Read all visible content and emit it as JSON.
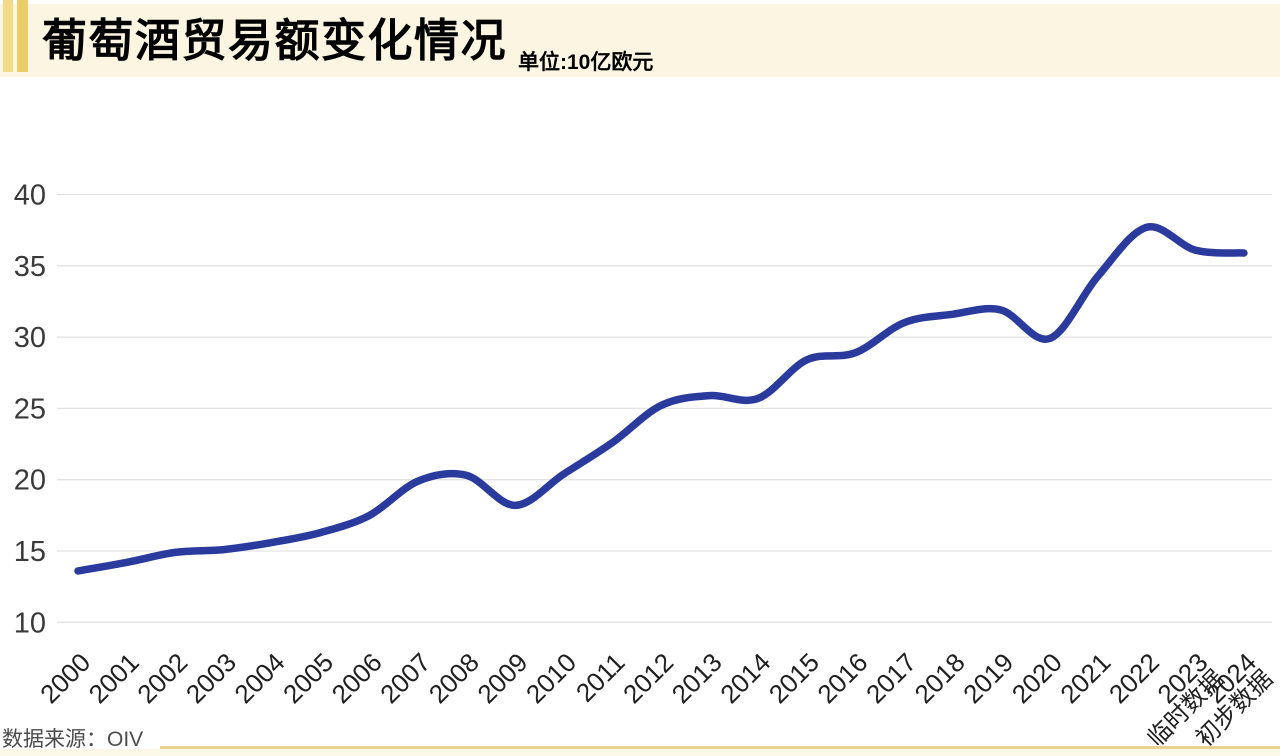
{
  "header": {
    "title": "葡萄酒贸易额变化情况",
    "unit_label": "单位:10亿欧元"
  },
  "chart_data": {
    "type": "line",
    "title": "葡萄酒贸易额变化情况",
    "unit_label": "单位:10亿欧元",
    "categories": [
      "2000",
      "2001",
      "2002",
      "2003",
      "2004",
      "2005",
      "2006",
      "2007",
      "2008",
      "2009",
      "2010",
      "2011",
      "2012",
      "2013",
      "2014",
      "2015",
      "2016",
      "2017",
      "2018",
      "2019",
      "2020",
      "2021",
      "2022",
      "2023",
      "2024"
    ],
    "category_notes": {
      "2023": "临时数据",
      "2024": "初步数据"
    },
    "values": [
      13.6,
      14.2,
      14.9,
      15.1,
      15.6,
      16.3,
      17.5,
      19.9,
      20.3,
      18.2,
      20.4,
      22.6,
      25.2,
      25.9,
      25.7,
      28.4,
      28.9,
      31.0,
      31.6,
      31.9,
      29.9,
      34.3,
      37.7,
      36.1,
      35.9
    ],
    "yticks": [
      10,
      15,
      20,
      25,
      30,
      35,
      40
    ],
    "ylim": [
      10,
      40
    ],
    "grid": true,
    "legend": "none",
    "line_color": "#2a3b9d",
    "grid_color": "#e3e3e3",
    "ytick_color": "#3a3a3a",
    "xtick_color": "#1f1f1f"
  },
  "footer": {
    "source_label": "数据来源：OIV"
  },
  "colors": {
    "header_band": "#fcf5e1",
    "accent_bar_light": "#f3da88",
    "accent_bar_dark": "#ebcd68",
    "footer_rule": "#e9d28f",
    "footer_strip": "#fdf7e4"
  }
}
